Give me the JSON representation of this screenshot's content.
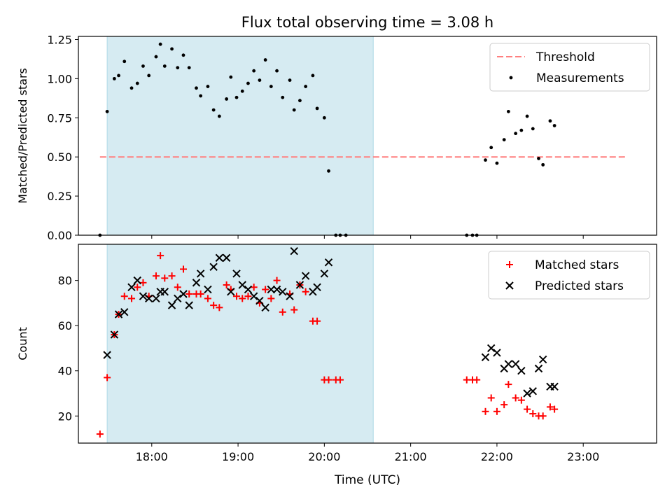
{
  "title": "Flux total observing time = 3.08 h",
  "colors": {
    "shade": "#add8e6",
    "threshold": "#ff7f7f",
    "measurements": "#000000",
    "matched": "#ff0000",
    "predicted": "#000000"
  },
  "chart_data": [
    {
      "type": "scatter",
      "ylabel": "Matched/Predicted stars",
      "xlim": [
        "17:09",
        "23:51"
      ],
      "ylim": [
        0,
        1.27
      ],
      "yticks": [
        "0.00",
        "0.25",
        "0.50",
        "0.75",
        "1.00",
        "1.25"
      ],
      "ytick_values": [
        0,
        0.25,
        0.5,
        0.75,
        1.0,
        1.25
      ],
      "shaded_interval": [
        "17:29",
        "20:34"
      ],
      "threshold": {
        "name": "Threshold",
        "x": [
          "17:24",
          "23:29"
        ],
        "y": 0.5,
        "style": "dashed"
      },
      "legend": {
        "location": "upper right",
        "entries": [
          "Threshold",
          "Measurements"
        ]
      },
      "series": [
        {
          "name": "Measurements",
          "marker": "dot",
          "points": [
            [
              "17:24",
              0.0
            ],
            [
              "17:29",
              0.79
            ],
            [
              "17:34",
              1.0
            ],
            [
              "17:37",
              1.02
            ],
            [
              "17:41",
              1.11
            ],
            [
              "17:46",
              0.94
            ],
            [
              "17:50",
              0.97
            ],
            [
              "17:54",
              1.08
            ],
            [
              "17:58",
              1.02
            ],
            [
              "18:03",
              1.14
            ],
            [
              "18:06",
              1.22
            ],
            [
              "18:09",
              1.08
            ],
            [
              "18:14",
              1.19
            ],
            [
              "18:18",
              1.07
            ],
            [
              "18:22",
              1.15
            ],
            [
              "18:26",
              1.07
            ],
            [
              "18:31",
              0.94
            ],
            [
              "18:34",
              0.89
            ],
            [
              "18:39",
              0.95
            ],
            [
              "18:43",
              0.8
            ],
            [
              "18:47",
              0.76
            ],
            [
              "18:52",
              0.87
            ],
            [
              "18:55",
              1.01
            ],
            [
              "18:59",
              0.88
            ],
            [
              "19:03",
              0.92
            ],
            [
              "19:07",
              0.97
            ],
            [
              "19:11",
              1.05
            ],
            [
              "19:15",
              0.99
            ],
            [
              "19:19",
              1.12
            ],
            [
              "19:23",
              0.95
            ],
            [
              "19:27",
              1.05
            ],
            [
              "19:31",
              0.88
            ],
            [
              "19:36",
              0.99
            ],
            [
              "19:39",
              0.8
            ],
            [
              "19:43",
              0.86
            ],
            [
              "19:47",
              0.95
            ],
            [
              "19:52",
              1.02
            ],
            [
              "19:55",
              0.81
            ],
            [
              "20:00",
              0.75
            ],
            [
              "20:03",
              0.41
            ],
            [
              "20:08",
              0.0
            ],
            [
              "20:11",
              0.0
            ],
            [
              "20:15",
              0.0
            ],
            [
              "21:39",
              0.0
            ],
            [
              "21:43",
              0.0
            ],
            [
              "21:46",
              0.0
            ],
            [
              "21:52",
              0.48
            ],
            [
              "21:56",
              0.56
            ],
            [
              "22:00",
              0.46
            ],
            [
              "22:05",
              0.61
            ],
            [
              "22:08",
              0.79
            ],
            [
              "22:13",
              0.65
            ],
            [
              "22:17",
              0.67
            ],
            [
              "22:21",
              0.76
            ],
            [
              "22:25",
              0.68
            ],
            [
              "22:29",
              0.49
            ],
            [
              "22:32",
              0.45
            ],
            [
              "22:37",
              0.73
            ],
            [
              "22:40",
              0.7
            ]
          ]
        }
      ]
    },
    {
      "type": "scatter",
      "xlabel": "Time (UTC)",
      "ylabel": "Count",
      "xlim": [
        "17:09",
        "23:51"
      ],
      "ylim": [
        8,
        96
      ],
      "xticks": [
        "18:00",
        "19:00",
        "20:00",
        "21:00",
        "22:00",
        "23:00"
      ],
      "yticks": [
        "20",
        "40",
        "60",
        "80"
      ],
      "ytick_values": [
        20,
        40,
        60,
        80
      ],
      "shaded_interval": [
        "17:29",
        "20:34"
      ],
      "legend": {
        "location": "upper right",
        "entries": [
          "Matched stars",
          "Predicted stars"
        ]
      },
      "series": [
        {
          "name": "Matched stars",
          "marker": "+",
          "points": [
            [
              "17:24",
              12
            ],
            [
              "17:29",
              37
            ],
            [
              "17:34",
              56
            ],
            [
              "17:37",
              65
            ],
            [
              "17:41",
              73
            ],
            [
              "17:46",
              72
            ],
            [
              "17:50",
              77
            ],
            [
              "17:54",
              79
            ],
            [
              "17:58",
              73
            ],
            [
              "18:03",
              82
            ],
            [
              "18:06",
              91
            ],
            [
              "18:09",
              81
            ],
            [
              "18:14",
              82
            ],
            [
              "18:18",
              77
            ],
            [
              "18:22",
              85
            ],
            [
              "18:26",
              74
            ],
            [
              "18:31",
              74
            ],
            [
              "18:34",
              74
            ],
            [
              "18:39",
              72
            ],
            [
              "18:43",
              69
            ],
            [
              "18:47",
              68
            ],
            [
              "18:52",
              78
            ],
            [
              "18:55",
              76
            ],
            [
              "18:59",
              73
            ],
            [
              "19:03",
              72
            ],
            [
              "19:07",
              73
            ],
            [
              "19:11",
              77
            ],
            [
              "19:15",
              70
            ],
            [
              "19:19",
              76
            ],
            [
              "19:23",
              72
            ],
            [
              "19:27",
              80
            ],
            [
              "19:31",
              66
            ],
            [
              "19:36",
              74
            ],
            [
              "19:39",
              67
            ],
            [
              "19:43",
              78
            ],
            [
              "19:47",
              75
            ],
            [
              "19:52",
              62
            ],
            [
              "19:55",
              62
            ],
            [
              "20:00",
              36
            ],
            [
              "20:03",
              36
            ],
            [
              "20:08",
              36
            ],
            [
              "20:11",
              36
            ],
            [
              "21:39",
              36
            ],
            [
              "21:43",
              36
            ],
            [
              "21:46",
              36
            ],
            [
              "21:52",
              22
            ],
            [
              "21:56",
              28
            ],
            [
              "22:00",
              22
            ],
            [
              "22:05",
              25
            ],
            [
              "22:08",
              34
            ],
            [
              "22:13",
              28
            ],
            [
              "22:17",
              27
            ],
            [
              "22:21",
              23
            ],
            [
              "22:25",
              21
            ],
            [
              "22:29",
              20
            ],
            [
              "22:32",
              20
            ],
            [
              "22:37",
              24
            ],
            [
              "22:40",
              23
            ]
          ]
        },
        {
          "name": "Predicted stars",
          "marker": "x",
          "points": [
            [
              "17:29",
              47
            ],
            [
              "17:34",
              56
            ],
            [
              "17:37",
              65
            ],
            [
              "17:41",
              66
            ],
            [
              "17:46",
              77
            ],
            [
              "17:50",
              80
            ],
            [
              "17:54",
              73
            ],
            [
              "17:58",
              72
            ],
            [
              "18:03",
              72
            ],
            [
              "18:06",
              75
            ],
            [
              "18:09",
              75
            ],
            [
              "18:14",
              69
            ],
            [
              "18:18",
              72
            ],
            [
              "18:22",
              74
            ],
            [
              "18:26",
              69
            ],
            [
              "18:31",
              79
            ],
            [
              "18:34",
              83
            ],
            [
              "18:39",
              76
            ],
            [
              "18:43",
              86
            ],
            [
              "18:47",
              90
            ],
            [
              "18:52",
              90
            ],
            [
              "18:55",
              75
            ],
            [
              "18:59",
              83
            ],
            [
              "19:03",
              78
            ],
            [
              "19:07",
              76
            ],
            [
              "19:11",
              73
            ],
            [
              "19:15",
              71
            ],
            [
              "19:19",
              68
            ],
            [
              "19:23",
              76
            ],
            [
              "19:27",
              76
            ],
            [
              "19:31",
              75
            ],
            [
              "19:36",
              73
            ],
            [
              "19:39",
              93
            ],
            [
              "19:43",
              78
            ],
            [
              "19:47",
              82
            ],
            [
              "19:52",
              75
            ],
            [
              "19:55",
              77
            ],
            [
              "20:00",
              83
            ],
            [
              "20:03",
              88
            ],
            [
              "21:52",
              46
            ],
            [
              "21:56",
              50
            ],
            [
              "22:00",
              48
            ],
            [
              "22:05",
              41
            ],
            [
              "22:08",
              43
            ],
            [
              "22:13",
              43
            ],
            [
              "22:17",
              40
            ],
            [
              "22:21",
              30
            ],
            [
              "22:25",
              31
            ],
            [
              "22:29",
              41
            ],
            [
              "22:32",
              45
            ],
            [
              "22:37",
              33
            ],
            [
              "22:40",
              33
            ]
          ]
        }
      ]
    }
  ]
}
